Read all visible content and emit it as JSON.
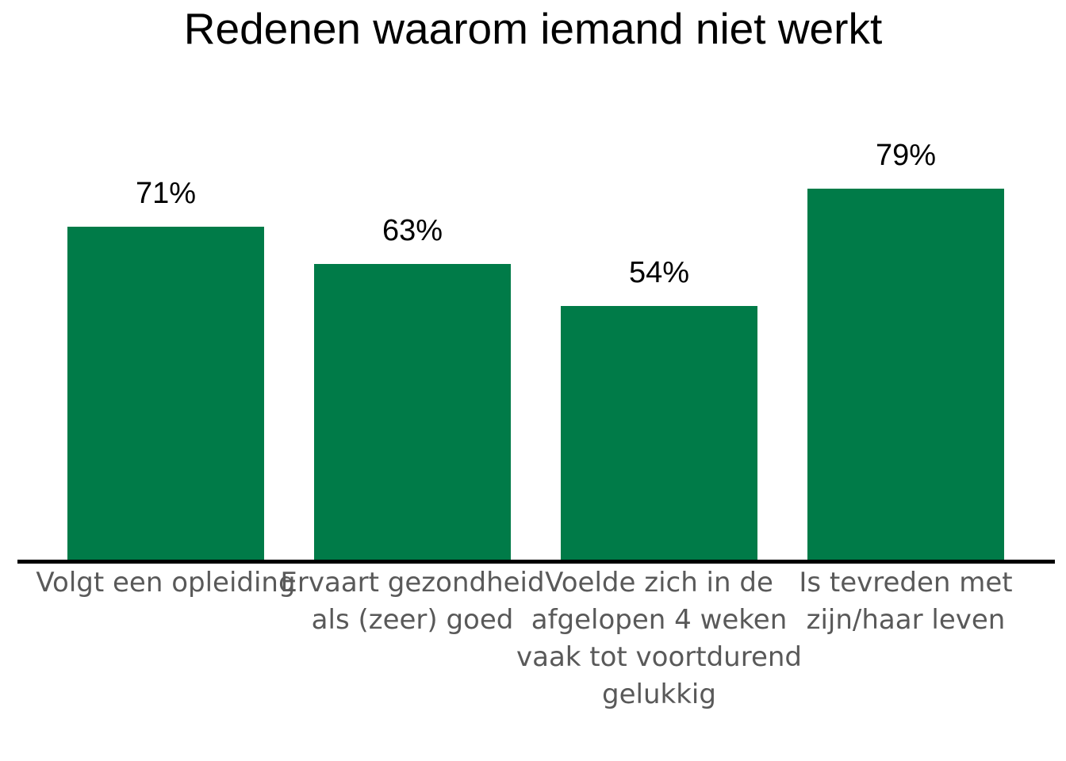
{
  "page": {
    "background": "#ffffff"
  },
  "chart_data": {
    "type": "bar",
    "title": "Redenen waarom iemand niet werkt",
    "categories": [
      "Volgt een opleiding",
      "Ervaart gezondheid als (zeer) goed",
      "Voelde zich in de afgelopen 4 weken vaak tot voortdurend gelukkig",
      "Is tevreden met zijn/haar leven"
    ],
    "category_label_lines": [
      "Volgt een opleiding",
      "Ervaart gezondheid\nals (zeer) goed",
      "Voelde zich in de\nafgelopen 4 weken\nvaak tot voortdurend\ngelukkig",
      "Is tevreden met\nzijn/haar leven"
    ],
    "values": [
      71,
      63,
      54,
      79
    ],
    "value_labels": [
      "71%",
      "63%",
      "54%",
      "79%"
    ],
    "unit": "%",
    "ylim": [
      0,
      100
    ],
    "grid": false,
    "legend": false,
    "bar_color": "#007B48",
    "axis_color": "#000000",
    "title_color": "#000000",
    "value_label_color": "#000000",
    "category_label_color": "#595959"
  }
}
